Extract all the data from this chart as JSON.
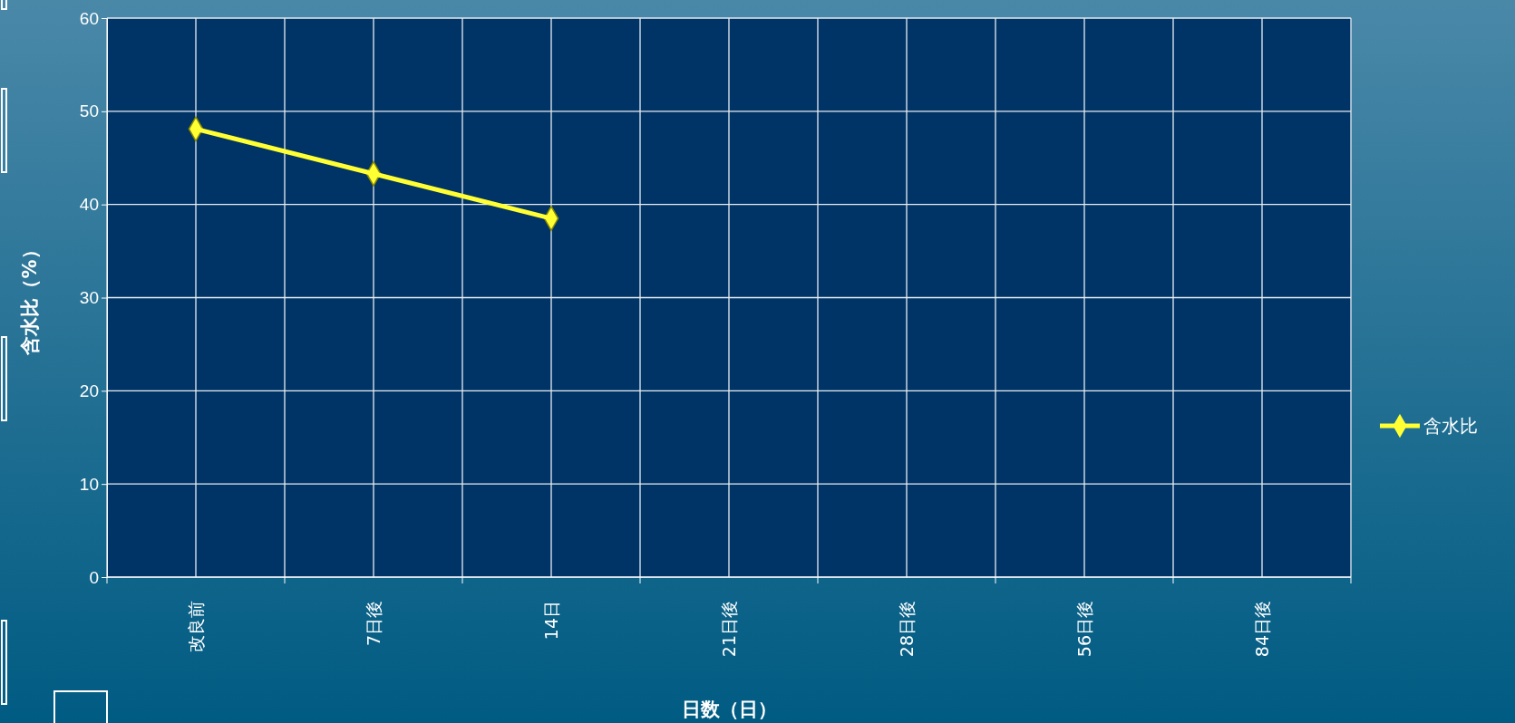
{
  "chart_data": {
    "type": "line",
    "xlabel": "日数（日）",
    "ylabel": "含水比（%）",
    "categories": [
      "改良前",
      "7日後",
      "14日",
      "21日後",
      "28日後",
      "56日後",
      "84日後"
    ],
    "series": [
      {
        "name": "含水比",
        "color": "#ffff33",
        "values": [
          48.1,
          43.3,
          38.5,
          null,
          null,
          null,
          null
        ]
      }
    ],
    "ylim": [
      0,
      60
    ],
    "yticks": [
      0,
      10,
      20,
      30,
      40,
      50,
      60
    ],
    "grid": true,
    "legend": "right",
    "marker": "diamond",
    "line_style": "solid"
  }
}
